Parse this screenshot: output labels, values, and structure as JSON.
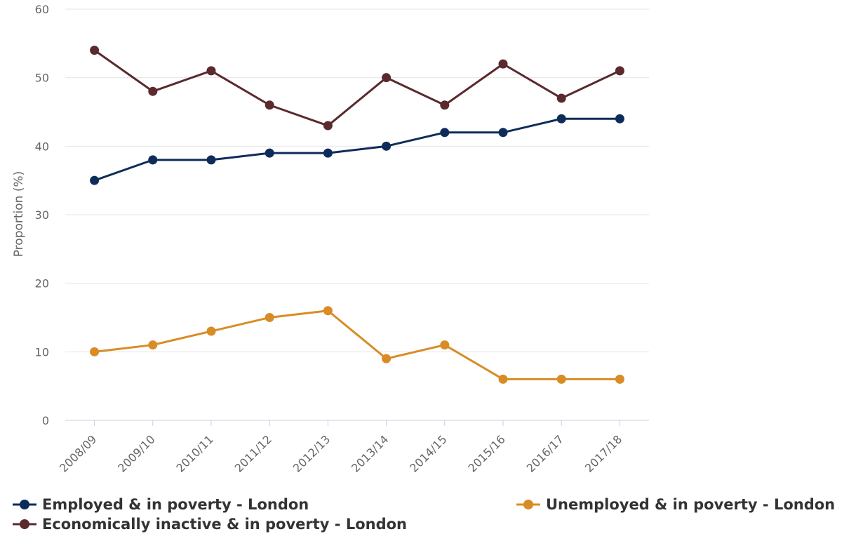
{
  "chart_data": {
    "type": "line",
    "title": "",
    "xlabel": "",
    "ylabel": "Proportion (%)",
    "ylim": [
      0,
      60
    ],
    "yticks": [
      0,
      10,
      20,
      30,
      40,
      50,
      60
    ],
    "grid": true,
    "legend_position": "bottom",
    "categories": [
      "2008/09",
      "2009/10",
      "2010/11",
      "2011/12",
      "2012/13",
      "2013/14",
      "2014/15",
      "2015/16",
      "2016/17",
      "2017/18"
    ],
    "series": [
      {
        "name": "Employed & in poverty - London",
        "color": "#0e2c5a",
        "values": [
          35,
          38,
          38,
          39,
          39,
          40,
          42,
          42,
          44,
          44
        ]
      },
      {
        "name": "Unemployed & in poverty - London",
        "color": "#d98c25",
        "values": [
          10,
          11,
          13,
          15,
          16,
          9,
          11,
          6,
          6,
          6
        ]
      },
      {
        "name": "Economically inactive & in poverty - London",
        "color": "#5a2a2e",
        "values": [
          54,
          48,
          51,
          46,
          43,
          50,
          46,
          52,
          47,
          51
        ]
      }
    ]
  }
}
